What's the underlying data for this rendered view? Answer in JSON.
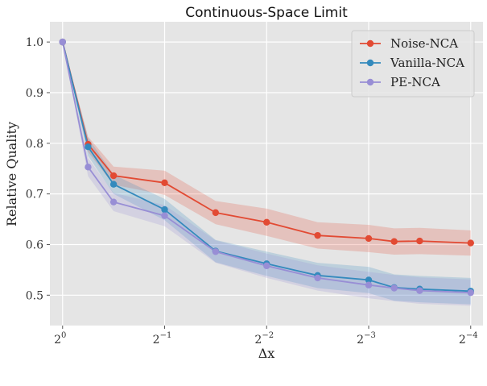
{
  "chart_data": {
    "type": "line",
    "title": "Continuous-Space Limit",
    "xlabel": "Δx",
    "ylabel": "Relative Quality",
    "x_scale": "log2",
    "x": [
      1.0,
      0.8409,
      0.7071,
      0.5,
      0.3536,
      0.25,
      0.1768,
      0.125,
      0.1051,
      0.0884,
      0.0625
    ],
    "xlim": [
      1.09,
      0.0575
    ],
    "ylim": [
      0.44,
      1.04
    ],
    "x_ticks": [
      {
        "value": 1.0,
        "base": "2",
        "exp": "0"
      },
      {
        "value": 0.5,
        "base": "2",
        "exp": "−1"
      },
      {
        "value": 0.25,
        "base": "2",
        "exp": "−2"
      },
      {
        "value": 0.125,
        "base": "2",
        "exp": "−3"
      },
      {
        "value": 0.0625,
        "base": "2",
        "exp": "−4"
      }
    ],
    "y_ticks": [
      {
        "value": 0.5,
        "label": "0.5"
      },
      {
        "value": 0.6,
        "label": "0.6"
      },
      {
        "value": 0.7,
        "label": "0.7"
      },
      {
        "value": 0.8,
        "label": "0.8"
      },
      {
        "value": 0.9,
        "label": "0.9"
      },
      {
        "value": 1.0,
        "label": "1.0"
      }
    ],
    "grid": true,
    "legend_position": "top-right",
    "series": [
      {
        "name": "Noise-NCA",
        "color": "#e24a33",
        "values": [
          1.0,
          0.798,
          0.736,
          0.722,
          0.663,
          0.644,
          0.618,
          0.612,
          0.606,
          0.607,
          0.603
        ],
        "band_low": [
          1.0,
          0.783,
          0.718,
          0.698,
          0.64,
          0.617,
          0.592,
          0.585,
          0.58,
          0.581,
          0.578
        ],
        "band_high": [
          1.0,
          0.813,
          0.754,
          0.746,
          0.686,
          0.671,
          0.644,
          0.639,
          0.632,
          0.633,
          0.628
        ]
      },
      {
        "name": "Vanilla-NCA",
        "color": "#348abd",
        "values": [
          1.0,
          0.793,
          0.719,
          0.669,
          0.587,
          0.562,
          0.539,
          0.53,
          0.515,
          0.512,
          0.508
        ],
        "band_low": [
          1.0,
          0.775,
          0.7,
          0.648,
          0.565,
          0.538,
          0.514,
          0.504,
          0.489,
          0.486,
          0.482
        ],
        "band_high": [
          1.0,
          0.811,
          0.738,
          0.69,
          0.609,
          0.586,
          0.564,
          0.556,
          0.541,
          0.538,
          0.534
        ]
      },
      {
        "name": "PE-NCA",
        "color": "#988ed5",
        "values": [
          1.0,
          0.753,
          0.684,
          0.657,
          0.586,
          0.558,
          0.534,
          0.52,
          0.514,
          0.509,
          0.505
        ],
        "band_low": [
          1.0,
          0.735,
          0.666,
          0.636,
          0.564,
          0.534,
          0.509,
          0.494,
          0.488,
          0.483,
          0.479
        ],
        "band_high": [
          1.0,
          0.771,
          0.702,
          0.678,
          0.608,
          0.582,
          0.559,
          0.546,
          0.54,
          0.535,
          0.531
        ]
      }
    ]
  }
}
